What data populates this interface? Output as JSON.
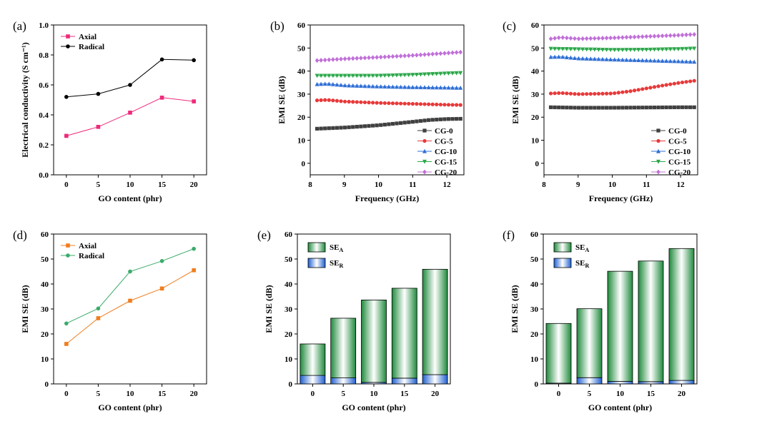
{
  "chart_data": [
    {
      "panel": "(a)",
      "type": "line",
      "x": [
        0,
        5,
        10,
        15,
        20
      ],
      "xlabel": "GO content (phr)",
      "ylabel": "Electrical conductivity (S cm⁻¹)",
      "xlim": [
        -2,
        22
      ],
      "ylim": [
        0.0,
        1.0
      ],
      "xticks": [
        0,
        5,
        10,
        15,
        20
      ],
      "yticks": [
        0.0,
        0.2,
        0.4,
        0.6,
        0.8,
        1.0
      ],
      "ytick_labels": [
        "0.0",
        "0.2",
        "0.4",
        "0.6",
        "0.8",
        "1.0"
      ],
      "legend": "top-left",
      "series": [
        {
          "name": "Axial",
          "values": [
            0.26,
            0.32,
            0.415,
            0.515,
            0.49
          ],
          "color": "#ee2a7b",
          "marker": "square"
        },
        {
          "name": "Radical",
          "values": [
            0.52,
            0.54,
            0.6,
            0.77,
            0.765
          ],
          "color": "#000000",
          "marker": "circle"
        }
      ]
    },
    {
      "panel": "(b)",
      "type": "line",
      "x_range": [
        8.2,
        12.4
      ],
      "points": 37,
      "xlabel": "Frequency (GHz)",
      "ylabel": "EMI SE (dB)",
      "xlim": [
        8,
        12.5
      ],
      "ylim": [
        -5,
        60
      ],
      "xticks": [
        8,
        9,
        10,
        11,
        12
      ],
      "yticks": [
        0,
        10,
        20,
        30,
        40,
        50,
        60
      ],
      "legend": "bottom-right",
      "series": [
        {
          "name": "CG-0",
          "x": [
            8.2,
            9,
            10,
            11,
            11.5,
            12,
            12.4
          ],
          "values": [
            15,
            15.5,
            16.5,
            18,
            18.8,
            19.2,
            19.3
          ],
          "color": "#404040",
          "marker": "square"
        },
        {
          "name": "CG-5",
          "x": [
            8.2,
            8.5,
            9,
            10,
            11,
            12,
            12.4
          ],
          "values": [
            27.3,
            27.5,
            26.8,
            26.2,
            25.8,
            25.4,
            25.3
          ],
          "color": "#e8393a",
          "marker": "circle"
        },
        {
          "name": "CG-10",
          "x": [
            8.2,
            8.5,
            9,
            10,
            11,
            12,
            12.4
          ],
          "values": [
            34.3,
            34.5,
            33.8,
            33.3,
            33,
            32.8,
            32.7
          ],
          "color": "#2f6fd6",
          "marker": "triangle-up"
        },
        {
          "name": "CG-15",
          "x": [
            8.2,
            9,
            10,
            11,
            12,
            12.4
          ],
          "values": [
            38,
            38,
            38,
            38.4,
            39,
            39.2
          ],
          "color": "#2ba84a",
          "marker": "triangle-down"
        },
        {
          "name": "CG-20",
          "x": [
            8.2,
            9,
            10,
            11,
            12,
            12.4
          ],
          "values": [
            44.6,
            45.3,
            46,
            46.8,
            47.8,
            48.2
          ],
          "color": "#c070d8",
          "marker": "diamond"
        }
      ]
    },
    {
      "panel": "(c)",
      "type": "line",
      "x_range": [
        8.2,
        12.4
      ],
      "points": 37,
      "xlabel": "Frequency (GHz)",
      "ylabel": "EMI SE (dB)",
      "xlim": [
        8,
        12.5
      ],
      "ylim": [
        -5,
        60
      ],
      "xticks": [
        8,
        9,
        10,
        11,
        12
      ],
      "yticks": [
        0,
        10,
        20,
        30,
        40,
        50,
        60
      ],
      "legend": "bottom-right",
      "series": [
        {
          "name": "CG-0",
          "x": [
            8.2,
            9,
            10,
            11,
            12,
            12.4
          ],
          "values": [
            24.3,
            24.1,
            24.1,
            24.2,
            24.3,
            24.3
          ],
          "color": "#404040",
          "marker": "square"
        },
        {
          "name": "CG-5",
          "x": [
            8.2,
            8.5,
            9,
            10,
            10.5,
            11,
            11.5,
            12,
            12.4
          ],
          "values": [
            30.3,
            30.5,
            30,
            30.3,
            31.2,
            32.5,
            33.8,
            35,
            35.8
          ],
          "color": "#e8393a",
          "marker": "circle"
        },
        {
          "name": "CG-10",
          "x": [
            8.2,
            8.5,
            9,
            10,
            11,
            12,
            12.4
          ],
          "values": [
            46.1,
            46.2,
            45.5,
            45,
            44.6,
            44.2,
            44
          ],
          "color": "#2f6fd6",
          "marker": "triangle-up"
        },
        {
          "name": "CG-15",
          "x": [
            8.2,
            9,
            10,
            11,
            12,
            12.4
          ],
          "values": [
            49.7,
            49.5,
            49.2,
            49.3,
            49.6,
            49.8
          ],
          "color": "#2ba84a",
          "marker": "triangle-down"
        },
        {
          "name": "CG-20",
          "x": [
            8.2,
            8.5,
            9,
            10,
            11,
            12,
            12.4
          ],
          "values": [
            54,
            54.6,
            54,
            54.4,
            55,
            55.6,
            55.9
          ],
          "color": "#c070d8",
          "marker": "diamond"
        }
      ]
    },
    {
      "panel": "(d)",
      "type": "line",
      "x": [
        0,
        5,
        10,
        15,
        20
      ],
      "xlabel": "GO content (phr)",
      "ylabel": "EMI SE (dB)",
      "xlim": [
        -2,
        22
      ],
      "ylim": [
        0,
        60
      ],
      "xticks": [
        0,
        5,
        10,
        15,
        20
      ],
      "yticks": [
        0,
        10,
        20,
        30,
        40,
        50,
        60
      ],
      "legend": "top-left",
      "series": [
        {
          "name": "Axial",
          "values": [
            16,
            26.3,
            33.3,
            38.2,
            45.5
          ],
          "color": "#f07d1e",
          "marker": "square"
        },
        {
          "name": "Radical",
          "values": [
            24.2,
            30.2,
            45,
            49.2,
            54.1
          ],
          "color": "#3aaa6a",
          "marker": "circle"
        }
      ]
    },
    {
      "panel": "(e)",
      "type": "bar",
      "stacked": true,
      "categories": [
        "0",
        "5",
        "10",
        "15",
        "20"
      ],
      "x": [
        0,
        5,
        10,
        15,
        20
      ],
      "xlabel": "GO content (phr)",
      "ylabel": "EMI SE (dB)",
      "xlim": [
        -2.5,
        22.5
      ],
      "ylim": [
        0,
        60
      ],
      "xticks": [
        0,
        5,
        10,
        15,
        20
      ],
      "yticks": [
        0,
        10,
        20,
        30,
        40,
        50,
        60
      ],
      "legend": "top-left",
      "series": [
        {
          "name": "SE_R",
          "label_main": "SE",
          "label_sub": "R",
          "values": [
            3.4,
            2.4,
            0.6,
            2.3,
            3.7
          ],
          "color": "#3b7de0"
        },
        {
          "name": "SE_A",
          "label_main": "SE",
          "label_sub": "A",
          "values": [
            12.6,
            23.9,
            33.0,
            36.0,
            42.2
          ],
          "color": "#2e9e4e"
        }
      ]
    },
    {
      "panel": "(f)",
      "type": "bar",
      "stacked": true,
      "categories": [
        "0",
        "5",
        "10",
        "15",
        "20"
      ],
      "x": [
        0,
        5,
        10,
        15,
        20
      ],
      "xlabel": "GO content (phr)",
      "ylabel": "EMI SE (dB)",
      "xlim": [
        -2.5,
        22.5
      ],
      "ylim": [
        0,
        60
      ],
      "xticks": [
        0,
        5,
        10,
        15,
        20
      ],
      "yticks": [
        0,
        10,
        20,
        30,
        40,
        50,
        60
      ],
      "legend": "top-left",
      "series": [
        {
          "name": "SE_R",
          "label_main": "SE",
          "label_sub": "R",
          "values": [
            0.3,
            2.5,
            1.0,
            0.9,
            1.4
          ],
          "color": "#3b7de0"
        },
        {
          "name": "SE_A",
          "label_main": "SE",
          "label_sub": "A",
          "values": [
            23.9,
            27.6,
            44.1,
            48.3,
            52.8
          ],
          "color": "#2e9e4e"
        }
      ]
    }
  ]
}
